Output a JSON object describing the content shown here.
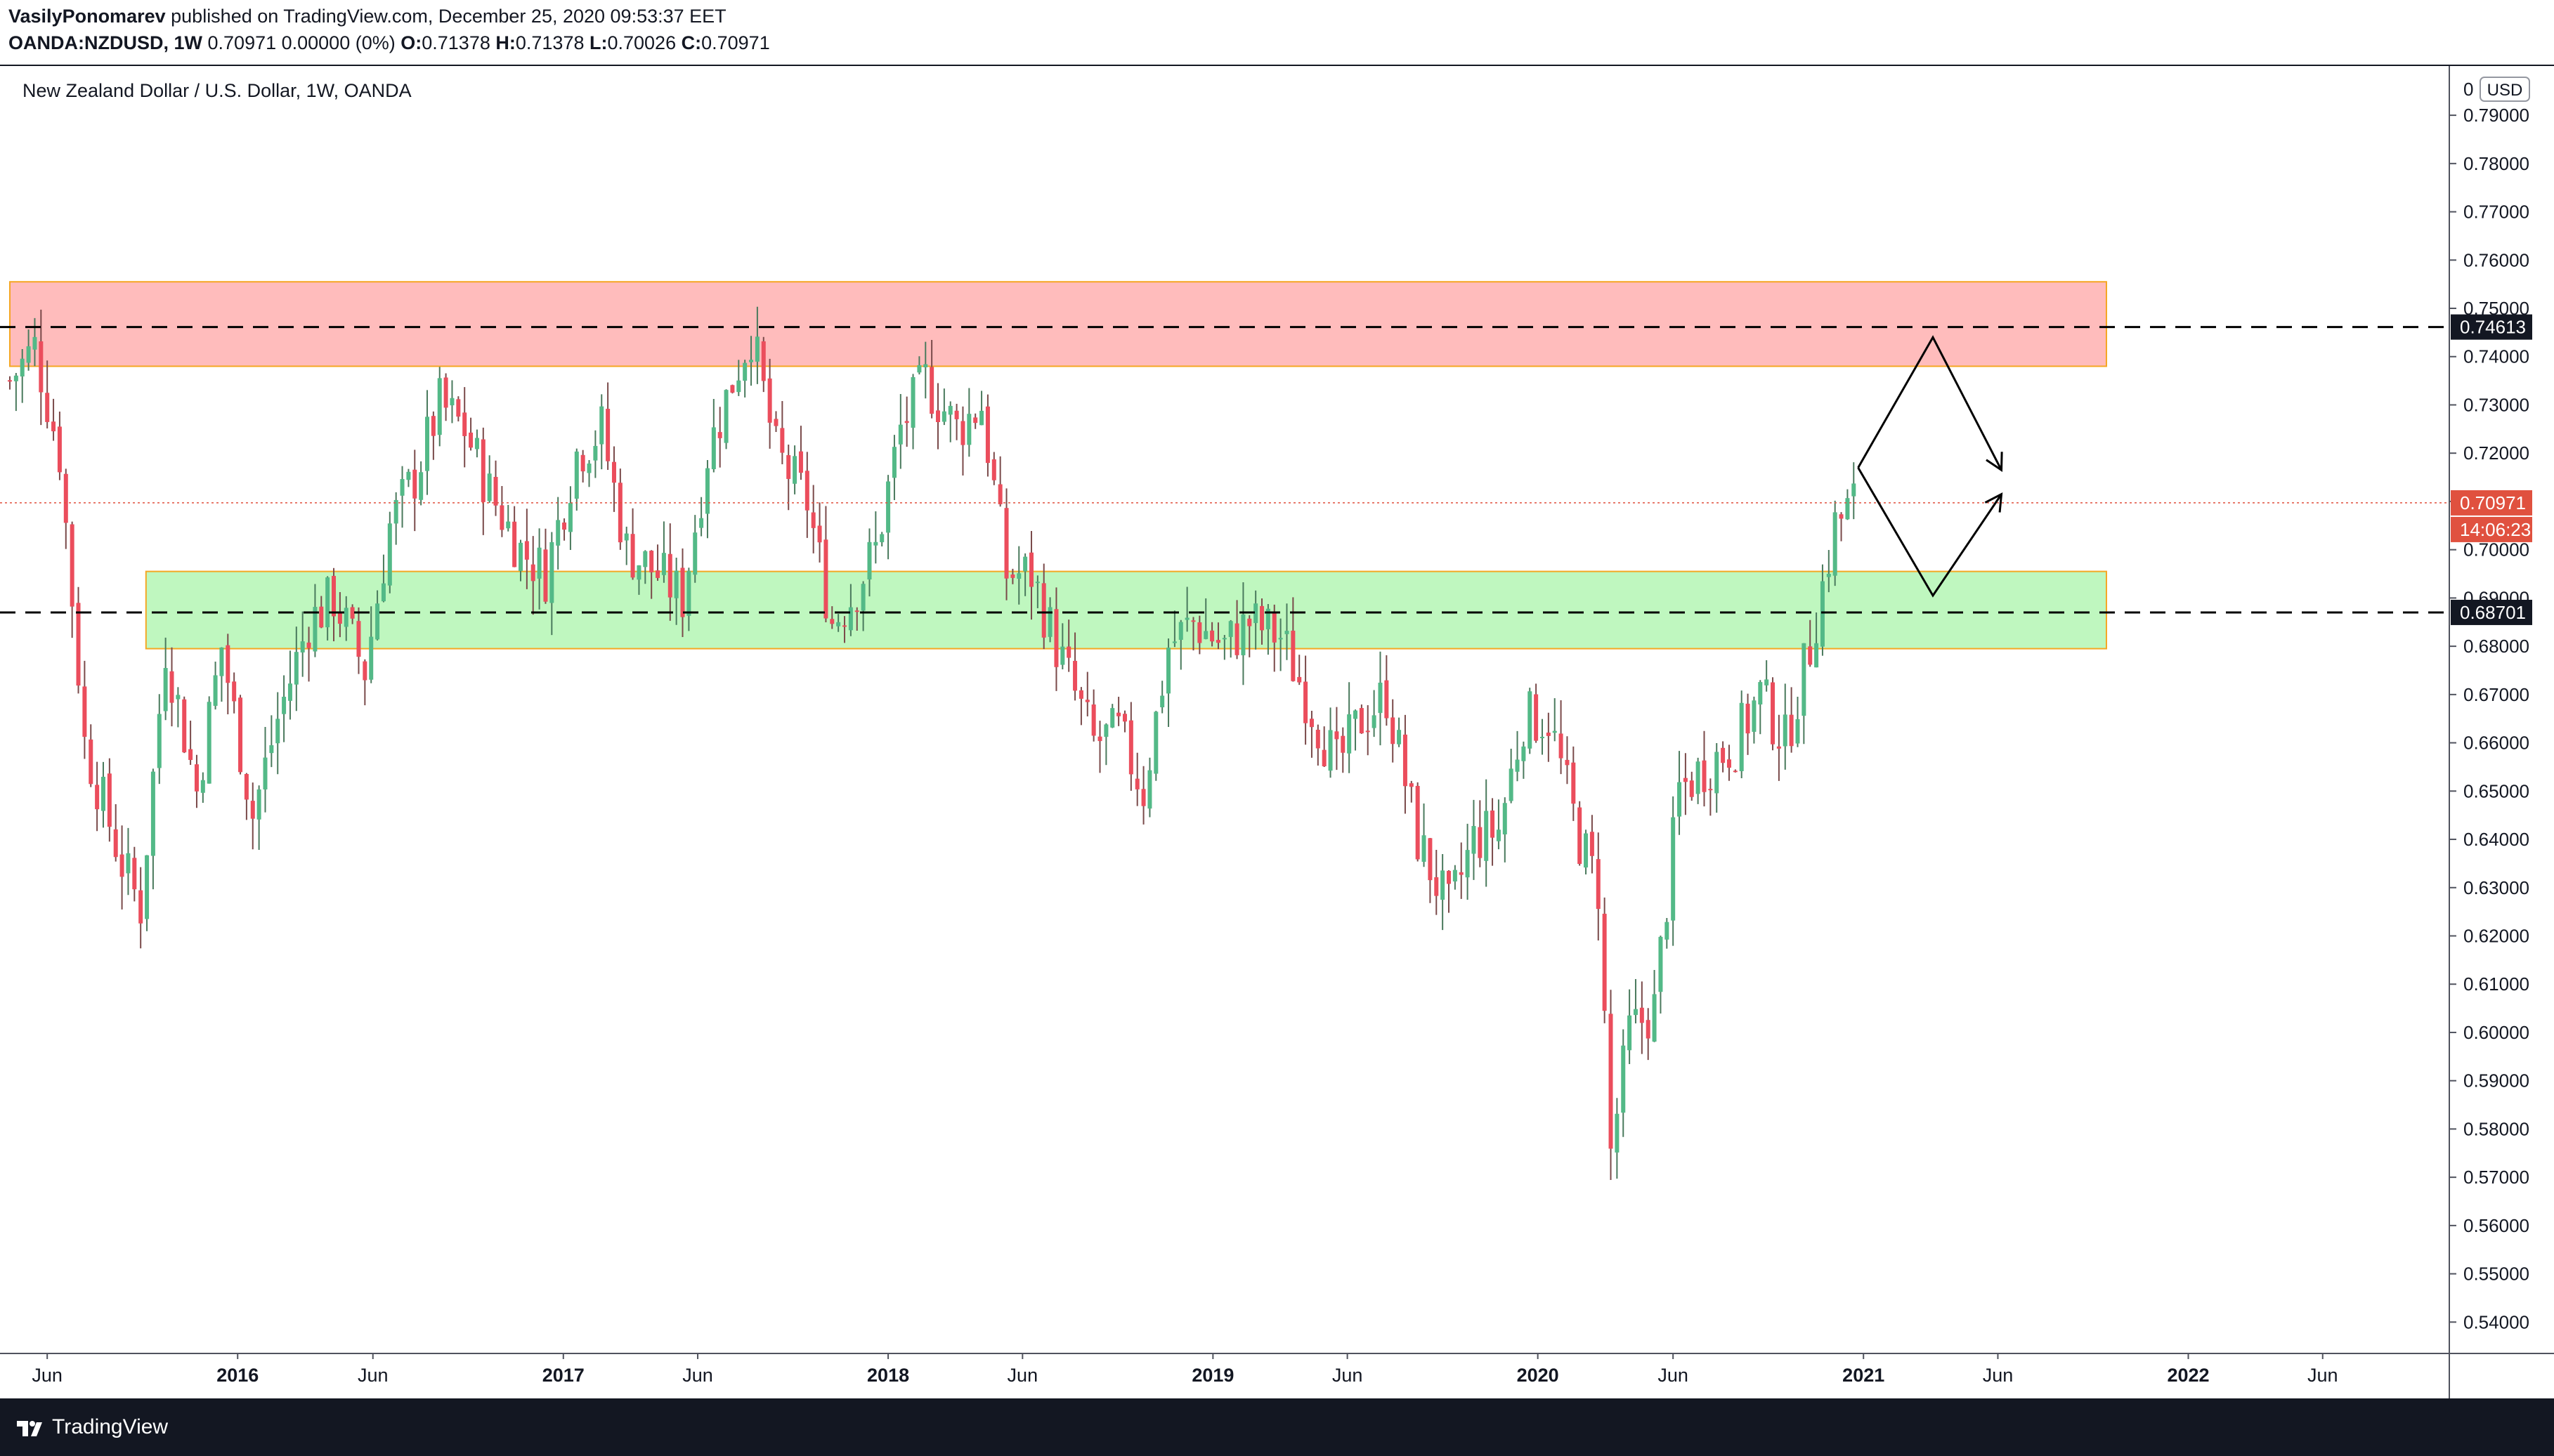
{
  "header": {
    "author": "VasilyPonomarev",
    "published": "published on TradingView.com, December 25, 2020 09:53:37 EET",
    "symbol": "OANDA:NZDUSD, 1W",
    "quote": "0.70971 0.00000 (0%)",
    "ohlc_label_o": "O:",
    "ohlc_o": "0.71378",
    "ohlc_label_h": "H:",
    "ohlc_h": "0.71378",
    "ohlc_label_l": "L:",
    "ohlc_l": "0.70026",
    "ohlc_label_c": "C:",
    "ohlc_c": "0.70971"
  },
  "footer": {
    "brand": "TradingView",
    "logo_icon": "tradingview-logo-icon"
  },
  "colors": {
    "up": "#53b987",
    "down": "#eb4d5c",
    "up_wick": "#4a7a5d",
    "down_wick": "#7a4a4a",
    "resistance_fill": "#ffbcbc",
    "support_fill": "#bff7bf",
    "zone_border": "#f5a623",
    "last_price": "#e0513f",
    "level_label": "#131722",
    "grid_text": "#131722"
  },
  "chart_data": {
    "type": "candlestick",
    "title": "New Zealand Dollar / U.S. Dollar, 1W, OANDA",
    "currency": "USD",
    "y_range": [
      0.5335,
      0.8002
    ],
    "x_range": [
      "2015-04-20",
      "2022-10-15"
    ],
    "y_ticks": [
      "0.54000",
      "0.55000",
      "0.56000",
      "0.57000",
      "0.58000",
      "0.59000",
      "0.60000",
      "0.61000",
      "0.62000",
      "0.63000",
      "0.64000",
      "0.65000",
      "0.66000",
      "0.67000",
      "0.68000",
      "0.69000",
      "0.70000",
      "0.71000",
      "0.72000",
      "0.73000",
      "0.74000",
      "0.75000",
      "0.76000",
      "0.77000",
      "0.78000",
      "0.79000"
    ],
    "x_ticks": [
      {
        "label": "Jun",
        "date": "2015-06-01",
        "major": false
      },
      {
        "label": "2016",
        "date": "2016-01-01",
        "major": true
      },
      {
        "label": "Jun",
        "date": "2016-06-01",
        "major": false
      },
      {
        "label": "2017",
        "date": "2017-01-01",
        "major": true
      },
      {
        "label": "Jun",
        "date": "2017-06-01",
        "major": false
      },
      {
        "label": "2018",
        "date": "2018-01-01",
        "major": true
      },
      {
        "label": "Jun",
        "date": "2018-06-01",
        "major": false
      },
      {
        "label": "2019",
        "date": "2019-01-01",
        "major": true
      },
      {
        "label": "Jun",
        "date": "2019-06-01",
        "major": false
      },
      {
        "label": "2020",
        "date": "2020-01-01",
        "major": true
      },
      {
        "label": "Jun",
        "date": "2020-06-01",
        "major": false
      },
      {
        "label": "2021",
        "date": "2021-01-01",
        "major": true
      },
      {
        "label": "Jun",
        "date": "2021-06-01",
        "major": false
      },
      {
        "label": "2022",
        "date": "2022-01-01",
        "major": true
      },
      {
        "label": "Jun",
        "date": "2022-06-01",
        "major": false
      }
    ],
    "levels": [
      {
        "value": 0.74613,
        "label": "0.74613",
        "style": "dashed"
      },
      {
        "value": 0.68701,
        "label": "0.68701",
        "style": "dashed"
      }
    ],
    "last_price": {
      "value": 0.70971,
      "label": "0.70971",
      "countdown": "14:06:23"
    },
    "zones": [
      {
        "name": "resistance",
        "start": "2015-04-20",
        "end": "2021-10-01",
        "top": 0.7555,
        "bottom": 0.738
      },
      {
        "name": "support",
        "start": "2015-09-20",
        "end": "2021-10-01",
        "top": 0.6955,
        "bottom": 0.6795
      }
    ],
    "projection": [
      {
        "name": "upper-path",
        "points": [
          [
            "2020-12-26",
            0.717
          ],
          [
            "2021-03-20",
            0.744
          ],
          [
            "2021-06-05",
            0.7165
          ]
        ]
      },
      {
        "name": "lower-path",
        "points": [
          [
            "2020-12-26",
            0.717
          ],
          [
            "2021-03-20",
            0.6905
          ],
          [
            "2021-06-05",
            0.7115
          ]
        ]
      }
    ],
    "anchors": [
      [
        "2015-04-20",
        0.735
      ],
      [
        "2015-05-18",
        0.742
      ],
      [
        "2015-06-15",
        0.72
      ],
      [
        "2015-07-13",
        0.66
      ],
      [
        "2015-08-24",
        0.635
      ],
      [
        "2015-09-14",
        0.626
      ],
      [
        "2015-10-12",
        0.68
      ],
      [
        "2015-11-16",
        0.65
      ],
      [
        "2015-12-14",
        0.68
      ],
      [
        "2016-01-18",
        0.645
      ],
      [
        "2016-02-15",
        0.665
      ],
      [
        "2016-03-21",
        0.685
      ],
      [
        "2016-04-18",
        0.69
      ],
      [
        "2016-05-23",
        0.675
      ],
      [
        "2016-06-20",
        0.705
      ],
      [
        "2016-07-18",
        0.715
      ],
      [
        "2016-08-15",
        0.73
      ],
      [
        "2016-09-12",
        0.725
      ],
      [
        "2016-10-10",
        0.712
      ],
      [
        "2016-11-14",
        0.7
      ],
      [
        "2016-12-12",
        0.695
      ],
      [
        "2017-01-16",
        0.72
      ],
      [
        "2017-02-13",
        0.725
      ],
      [
        "2017-03-13",
        0.7
      ],
      [
        "2017-04-17",
        0.695
      ],
      [
        "2017-05-15",
        0.69
      ],
      [
        "2017-06-12",
        0.72
      ],
      [
        "2017-07-10",
        0.735
      ],
      [
        "2017-07-31",
        0.745
      ],
      [
        "2017-08-28",
        0.72
      ],
      [
        "2017-10-02",
        0.71
      ],
      [
        "2017-10-30",
        0.685
      ],
      [
        "2017-11-20",
        0.69
      ],
      [
        "2017-12-18",
        0.7
      ],
      [
        "2018-01-15",
        0.725
      ],
      [
        "2018-02-12",
        0.735
      ],
      [
        "2018-03-19",
        0.725
      ],
      [
        "2018-04-16",
        0.73
      ],
      [
        "2018-05-14",
        0.695
      ],
      [
        "2018-06-11",
        0.695
      ],
      [
        "2018-07-09",
        0.68
      ],
      [
        "2018-08-20",
        0.66
      ],
      [
        "2018-09-17",
        0.662
      ],
      [
        "2018-10-15",
        0.65
      ],
      [
        "2018-11-12",
        0.68
      ],
      [
        "2018-12-10",
        0.685
      ],
      [
        "2019-01-14",
        0.68
      ],
      [
        "2019-02-11",
        0.685
      ],
      [
        "2019-03-18",
        0.682
      ],
      [
        "2019-04-15",
        0.67
      ],
      [
        "2019-05-20",
        0.655
      ],
      [
        "2019-06-17",
        0.665
      ],
      [
        "2019-07-15",
        0.67
      ],
      [
        "2019-08-19",
        0.64
      ],
      [
        "2019-09-23",
        0.625
      ],
      [
        "2019-10-21",
        0.64
      ],
      [
        "2019-11-18",
        0.642
      ],
      [
        "2019-12-16",
        0.665
      ],
      [
        "2020-01-13",
        0.665
      ],
      [
        "2020-02-17",
        0.64
      ],
      [
        "2020-03-09",
        0.63
      ],
      [
        "2020-03-23",
        0.575
      ],
      [
        "2020-04-13",
        0.6
      ],
      [
        "2020-05-11",
        0.605
      ],
      [
        "2020-06-08",
        0.65
      ],
      [
        "2020-07-06",
        0.655
      ],
      [
        "2020-08-10",
        0.66
      ],
      [
        "2020-09-07",
        0.67
      ],
      [
        "2020-10-05",
        0.66
      ],
      [
        "2020-11-02",
        0.68
      ],
      [
        "2020-11-30",
        0.705
      ],
      [
        "2020-12-21",
        0.7097
      ]
    ]
  }
}
